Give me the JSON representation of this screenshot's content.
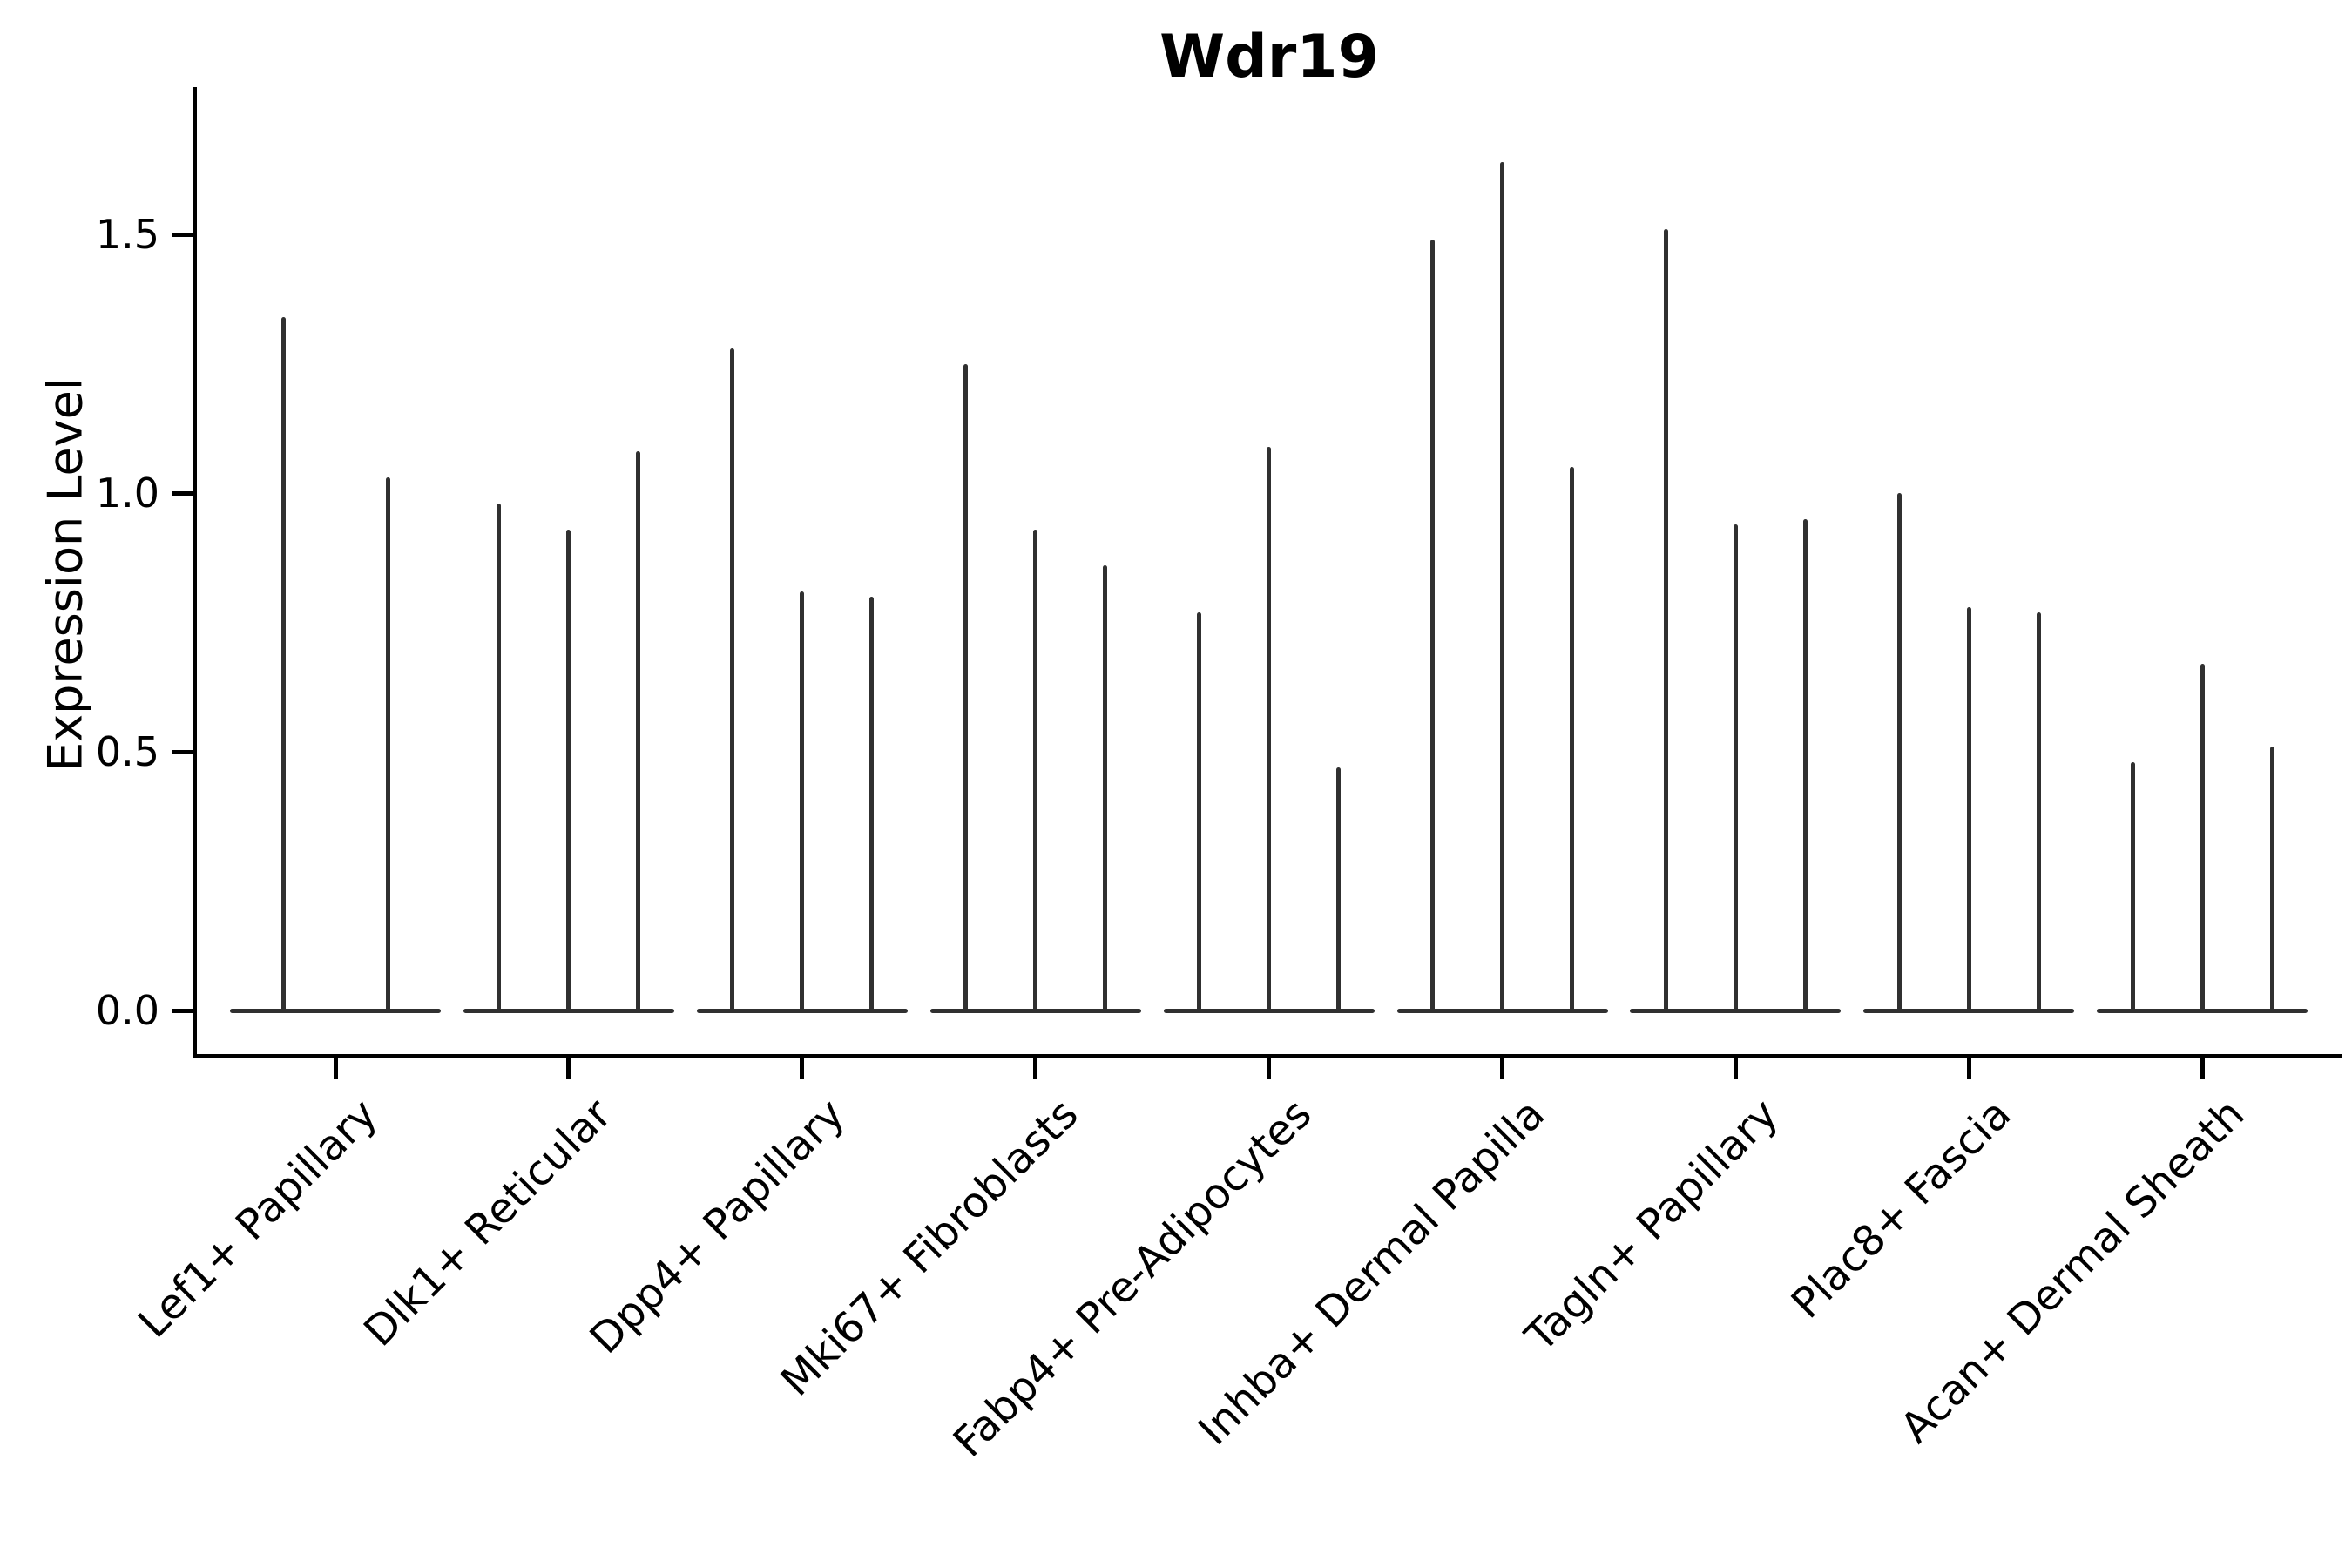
{
  "title": "Wdr19",
  "colors": {
    "violin": "#303030",
    "axis": "#000000",
    "text": "#000000",
    "background": "#ffffff"
  },
  "chart_data": {
    "type": "violin",
    "title": "Wdr19",
    "xlabel": "",
    "ylabel": "Expression Level",
    "ylim": [
      -0.08,
      1.78
    ],
    "yticks": [
      0.0,
      0.5,
      1.0,
      1.5
    ],
    "ytick_labels": [
      "0.0",
      "0.5",
      "1.0",
      "1.5"
    ],
    "grid": false,
    "legend": "none",
    "description": "Violin plot of Wdr19 expression; violins are collapsed at 0 with thin spikes reaching the maximum expression of each sub-violin",
    "categories": [
      "Lef1+ Papillary",
      "Dlk1+ Reticular",
      "Dpp4+ Papillary",
      "Mki67+ Fibroblasts",
      "Fabp4+ Pre-Adipocytes",
      "Inhba+ Dermal Papilla",
      "Tagln+ Papillary",
      "Plac8+ Fascia",
      "Acan+ Dermal Sheath"
    ],
    "groups": [
      {
        "category": "Lef1+ Papillary",
        "violins": [
          {
            "min": 0,
            "max": 1.34
          },
          {
            "min": 0,
            "max": 1.03
          }
        ]
      },
      {
        "category": "Dlk1+ Reticular",
        "violins": [
          {
            "min": 0,
            "max": 0.98
          },
          {
            "min": 0,
            "max": 0.93
          },
          {
            "min": 0,
            "max": 1.08
          }
        ]
      },
      {
        "category": "Dpp4+ Papillary",
        "violins": [
          {
            "min": 0,
            "max": 1.28
          },
          {
            "min": 0,
            "max": 0.81
          },
          {
            "min": 0,
            "max": 0.8
          }
        ]
      },
      {
        "category": "Mki67+ Fibroblasts",
        "violins": [
          {
            "min": 0,
            "max": 1.25
          },
          {
            "min": 0,
            "max": 0.93
          },
          {
            "min": 0,
            "max": 0.86
          }
        ]
      },
      {
        "category": "Fabp4+ Pre-Adipocytes",
        "violins": [
          {
            "min": 0,
            "max": 0.77
          },
          {
            "min": 0,
            "max": 1.09
          },
          {
            "min": 0,
            "max": 0.47
          }
        ]
      },
      {
        "category": "Inhba+ Dermal Papilla",
        "violins": [
          {
            "min": 0,
            "max": 1.49
          },
          {
            "min": 0,
            "max": 1.64
          },
          {
            "min": 0,
            "max": 1.05
          }
        ]
      },
      {
        "category": "Tagln+ Papillary",
        "violins": [
          {
            "min": 0,
            "max": 1.51
          },
          {
            "min": 0,
            "max": 0.94
          },
          {
            "min": 0,
            "max": 0.95
          }
        ]
      },
      {
        "category": "Plac8+ Fascia",
        "violins": [
          {
            "min": 0,
            "max": 1.0
          },
          {
            "min": 0,
            "max": 0.78
          },
          {
            "min": 0,
            "max": 0.77
          }
        ]
      },
      {
        "category": "Acan+ Dermal Sheath",
        "violins": [
          {
            "min": 0,
            "max": 0.48
          },
          {
            "min": 0,
            "max": 0.67
          },
          {
            "min": 0,
            "max": 0.51
          }
        ]
      }
    ]
  }
}
